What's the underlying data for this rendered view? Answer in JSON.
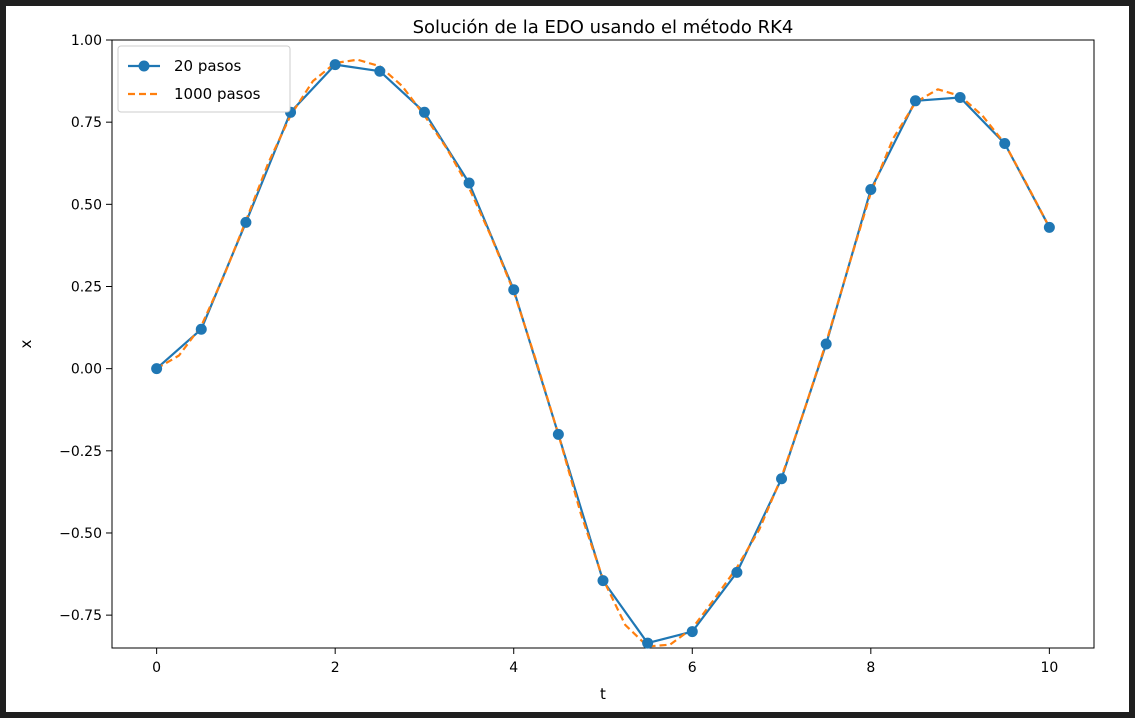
{
  "chart_data": {
    "type": "line",
    "title": "Solución de la EDO usando el método RK4",
    "xlabel": "t",
    "ylabel": "x",
    "xlim": [
      -0.5,
      10.5
    ],
    "ylim": [
      -0.85,
      1.0
    ],
    "xticks": [
      0,
      2,
      4,
      6,
      8,
      10
    ],
    "xtick_labels": [
      "0",
      "2",
      "4",
      "6",
      "8",
      "10"
    ],
    "yticks": [
      1.0,
      0.75,
      0.5,
      0.25,
      0.0,
      -0.25,
      -0.5,
      -0.75
    ],
    "ytick_labels": [
      "1.00",
      "0.75",
      "0.50",
      "0.25",
      "0.00",
      "−0.25",
      "−0.50",
      "−0.75"
    ],
    "grid": false,
    "legend_position": "upper-left",
    "series": [
      {
        "name": "20 pasos",
        "color": "#1f77b4",
        "style": "solid-with-markers",
        "x": [
          0,
          0.5,
          1,
          1.5,
          2,
          2.5,
          3,
          3.5,
          4,
          4.5,
          5,
          5.5,
          6,
          6.5,
          7,
          7.5,
          8,
          8.5,
          9,
          9.5,
          10
        ],
        "y": [
          0.0,
          0.12,
          0.445,
          0.78,
          0.925,
          0.905,
          0.78,
          0.565,
          0.24,
          -0.2,
          -0.645,
          -0.835,
          -0.8,
          -0.62,
          -0.335,
          0.075,
          0.545,
          0.815,
          0.825,
          0.685,
          0.43
        ]
      },
      {
        "name": "1000 pasos",
        "color": "#ff7f0e",
        "style": "dashed",
        "x": [
          0,
          0.25,
          0.5,
          0.75,
          1,
          1.25,
          1.5,
          1.75,
          2,
          2.25,
          2.5,
          2.75,
          3,
          3.25,
          3.5,
          3.75,
          4,
          4.25,
          4.5,
          4.75,
          5,
          5.25,
          5.5,
          5.75,
          6,
          6.25,
          6.5,
          6.75,
          7,
          7.25,
          7.5,
          7.75,
          8,
          8.25,
          8.5,
          8.75,
          9,
          9.25,
          9.5,
          9.75,
          10
        ],
        "y": [
          0.0,
          0.04,
          0.13,
          0.28,
          0.45,
          0.625,
          0.77,
          0.875,
          0.93,
          0.94,
          0.92,
          0.86,
          0.77,
          0.67,
          0.55,
          0.4,
          0.235,
          0.025,
          -0.2,
          -0.44,
          -0.64,
          -0.78,
          -0.845,
          -0.84,
          -0.79,
          -0.7,
          -0.605,
          -0.49,
          -0.33,
          -0.13,
          0.08,
          0.31,
          0.535,
          0.7,
          0.81,
          0.85,
          0.83,
          0.77,
          0.685,
          0.56,
          0.43
        ]
      }
    ]
  }
}
